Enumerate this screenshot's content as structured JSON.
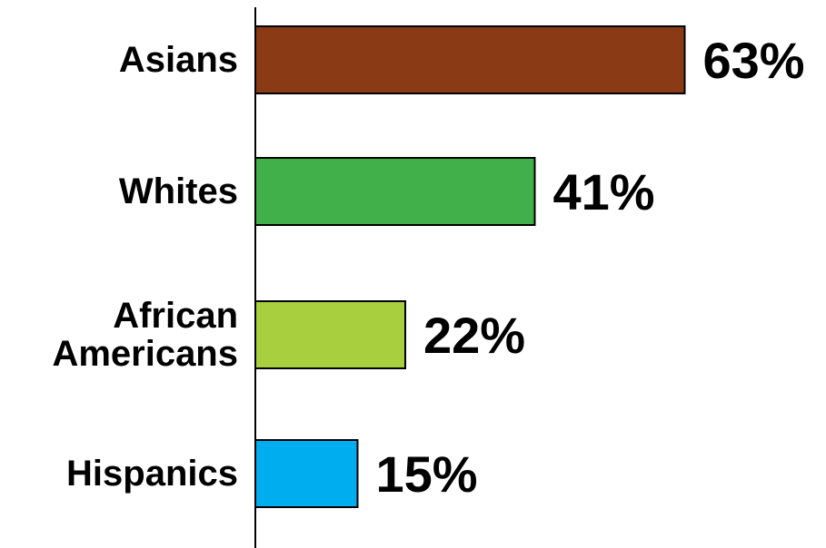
{
  "chart_data": {
    "type": "bar",
    "orientation": "horizontal",
    "categories": [
      "Asians",
      "Whites",
      "African Americans",
      "Hispanics"
    ],
    "category_lines": [
      [
        "Asians"
      ],
      [
        "Whites"
      ],
      [
        "African",
        "Americans"
      ],
      [
        "Hispanics"
      ]
    ],
    "values": [
      63,
      41,
      22,
      15
    ],
    "value_labels": [
      "63%",
      "41%",
      "22%",
      "15%"
    ],
    "colors": [
      "#8B3A16",
      "#41B04A",
      "#A8CF3E",
      "#00AEEF"
    ],
    "title": "",
    "xlabel": "",
    "ylabel": "",
    "grid": false,
    "legend": "none"
  }
}
